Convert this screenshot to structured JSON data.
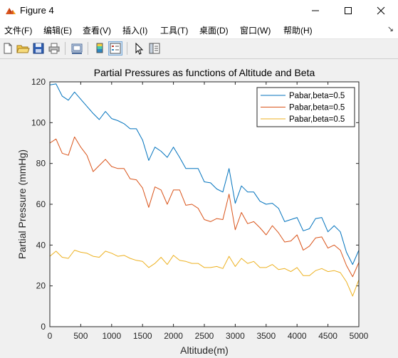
{
  "window": {
    "title": "Figure 4"
  },
  "menu": [
    "文件(F)",
    "编辑(E)",
    "查看(V)",
    "插入(I)",
    "工具(T)",
    "桌面(D)",
    "窗口(W)",
    "帮助(H)"
  ],
  "toolbar": {
    "buttons": [
      "new-figure",
      "open-file",
      "save",
      "print",
      "print-preview",
      "link-plot",
      "insert-colorbar",
      "insert-legend",
      "edit-plot",
      "property-inspector"
    ]
  },
  "chart_data": {
    "type": "line",
    "title": "Partial Pressures as functions of Altitude and Beta",
    "xlabel": "Altitude(m)",
    "ylabel": "Partial Pressure (mmHg)",
    "xlim": [
      0,
      5000
    ],
    "ylim": [
      0,
      120
    ],
    "xticks": [
      0,
      500,
      1000,
      1500,
      2000,
      2500,
      3000,
      3500,
      4000,
      4500,
      5000
    ],
    "yticks": [
      0,
      20,
      40,
      60,
      80,
      100,
      120
    ],
    "grid": false,
    "legend_position": "top-right",
    "x": [
      0,
      100,
      200,
      300,
      400,
      500,
      600,
      700,
      800,
      900,
      1000,
      1100,
      1200,
      1300,
      1400,
      1500,
      1600,
      1700,
      1800,
      1900,
      2000,
      2100,
      2200,
      2300,
      2400,
      2500,
      2600,
      2700,
      2800,
      2900,
      3000,
      3100,
      3200,
      3300,
      3400,
      3500,
      3600,
      3700,
      3800,
      3900,
      4000,
      4100,
      4200,
      4300,
      4400,
      4500,
      4600,
      4700,
      4800,
      4900,
      5000
    ],
    "series": [
      {
        "name": "Pabar,beta=0.5",
        "color": "#0072bd",
        "values": [
          118.5,
          119,
          113,
          111,
          115,
          111.5,
          108,
          104.5,
          101.5,
          105.5,
          102,
          101,
          99.5,
          97,
          97,
          91.5,
          81.5,
          88,
          86,
          83,
          88,
          83,
          77.5,
          77.5,
          77.5,
          71,
          70.5,
          67.5,
          66,
          77.5,
          60.5,
          69,
          66,
          66,
          61.5,
          60,
          60.5,
          58,
          51.5,
          52.5,
          53.5,
          47,
          48,
          53,
          53.5,
          46.5,
          49.5,
          46.5,
          36.5,
          30.5,
          37.5
        ]
      },
      {
        "name": "Pabar,beta=0.5",
        "color": "#d95319",
        "values": [
          90,
          92,
          85,
          84,
          93,
          88,
          84,
          76,
          79,
          82,
          78.5,
          77.5,
          77.5,
          72.5,
          72,
          68,
          58.5,
          68.5,
          67,
          60,
          67,
          67,
          59.5,
          60,
          58,
          52.5,
          51.5,
          53,
          52.5,
          65,
          47.5,
          56,
          50.5,
          51.5,
          48.5,
          45,
          49.5,
          46,
          41.5,
          42,
          45,
          37.5,
          39.5,
          43.5,
          44,
          38.5,
          40,
          37.5,
          30,
          24.5,
          31.5
        ]
      },
      {
        "name": "Pabar,beta=0.5",
        "color": "#edb120",
        "values": [
          34.5,
          37,
          34,
          33.5,
          37.5,
          36.5,
          36,
          34.5,
          34,
          37,
          36,
          34.5,
          35,
          33.5,
          32.5,
          32,
          29,
          31,
          34,
          30.5,
          35,
          32.5,
          32,
          31,
          31,
          29,
          29,
          29.5,
          28.5,
          34.5,
          29.5,
          33.5,
          31,
          32,
          29,
          29,
          30.5,
          28,
          28.5,
          27,
          29,
          25,
          25,
          27.5,
          28.5,
          27,
          27.5,
          26.5,
          22,
          15,
          23
        ]
      }
    ]
  }
}
